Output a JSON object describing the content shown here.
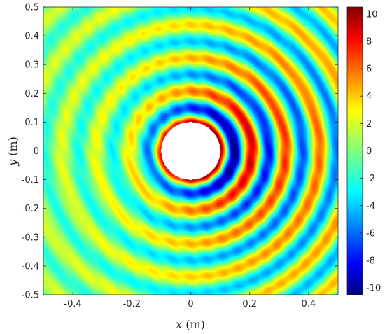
{
  "chart_data": {
    "type": "heatmap",
    "title": "",
    "xlabel": {
      "var": "x",
      "unit": "(m)"
    },
    "ylabel": {
      "var": "y",
      "unit": "(m)"
    },
    "xlim": [
      -0.5,
      0.5
    ],
    "ylim": [
      -0.5,
      0.5
    ],
    "xticks": [
      "-0.4",
      "-0.2",
      "0",
      "0.2",
      "0.4"
    ],
    "yticks": [
      "0.5",
      "0.4",
      "0.3",
      "0.2",
      "0.1",
      "0",
      "-0.1",
      "-0.2",
      "-0.3",
      "-0.4",
      "-0.5"
    ],
    "colorbar": {
      "colormap": "jet",
      "limits": [
        -10.5,
        10.5
      ],
      "ticks": [
        "10",
        "8",
        "6",
        "4",
        "2",
        "0",
        "-2",
        "-4",
        "-6",
        "-8",
        "-10"
      ]
    },
    "field": {
      "description": "scattered pressure field around a circular obstacle",
      "obstacle": {
        "shape": "circle",
        "center": [
          0,
          0
        ],
        "radius": 0.1
      },
      "wavelength_m": 0.115,
      "max_value": 10.5
    }
  }
}
